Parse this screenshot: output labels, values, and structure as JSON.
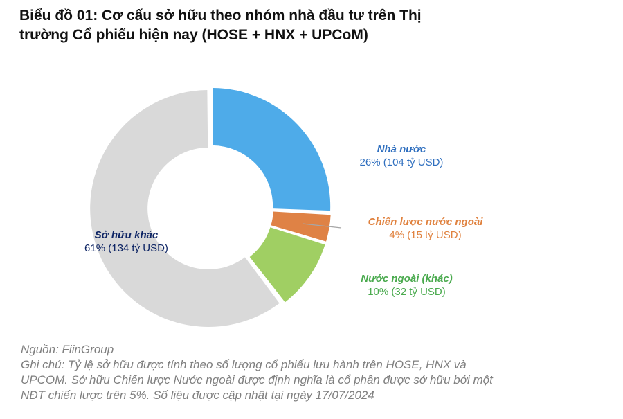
{
  "title": {
    "line1": "Biểu đồ 01: Cơ cấu sở hữu theo nhóm nhà đầu tư trên Thị",
    "line2": "trường Cổ phiếu hiện nay (HOSE + HNX + UPCoM)"
  },
  "labels": {
    "state": {
      "name": "Nhà nước",
      "value": "26% (104 tỷ USD)"
    },
    "strategic_foreign": {
      "name": "Chiến lược nước ngoài",
      "value": "4% (15 tỷ USD)"
    },
    "foreign_other": {
      "name": "Nước ngoài (khác)",
      "value": "10% (32 tỷ USD)"
    },
    "other": {
      "name": "Sở hữu khác",
      "value": "61% (134 tỷ USD)"
    }
  },
  "footer": {
    "source": "Nguồn: FiinGroup",
    "note1": "Ghi chú: Tỷ lệ sở hữu được tính theo số lượng cổ phiếu lưu hành trên HOSE, HNX và",
    "note2": "UPCOM. Sở hữu Chiến lược Nước ngoài được định nghĩa là cổ phần được sở hữu bởi một",
    "note3": "NĐT chiến lược trên 5%. Số liệu được cập nhật tại ngày 17/07/2024"
  },
  "colors": {
    "state": "#4eabe9",
    "strategic_foreign": "#df8245",
    "foreign_other": "#a0cf63",
    "other": "#d9d9d9"
  },
  "chart_data": {
    "type": "pie",
    "subtype": "donut",
    "title": "Biểu đồ 01: Cơ cấu sở hữu theo nhóm nhà đầu tư trên Thị trường Cổ phiếu hiện nay (HOSE + HNX + UPCoM)",
    "categories": [
      "Nhà nước",
      "Chiến lược nước ngoài",
      "Nước ngoài (khác)",
      "Sở hữu khác"
    ],
    "values": [
      26,
      4,
      10,
      61
    ],
    "values_usd_billion": [
      104,
      15,
      32,
      134
    ],
    "unit": "%",
    "data_labels": [
      "26% (104 tỷ USD)",
      "4% (15 tỷ USD)",
      "10% (32 tỷ USD)",
      "61% (134 tỷ USD)"
    ],
    "colors": [
      "#4eabe9",
      "#df8245",
      "#a0cf63",
      "#d9d9d9"
    ],
    "start_angle": "top, clockwise",
    "legend": "none (direct labels)",
    "source": "Nguồn: FiinGroup"
  }
}
